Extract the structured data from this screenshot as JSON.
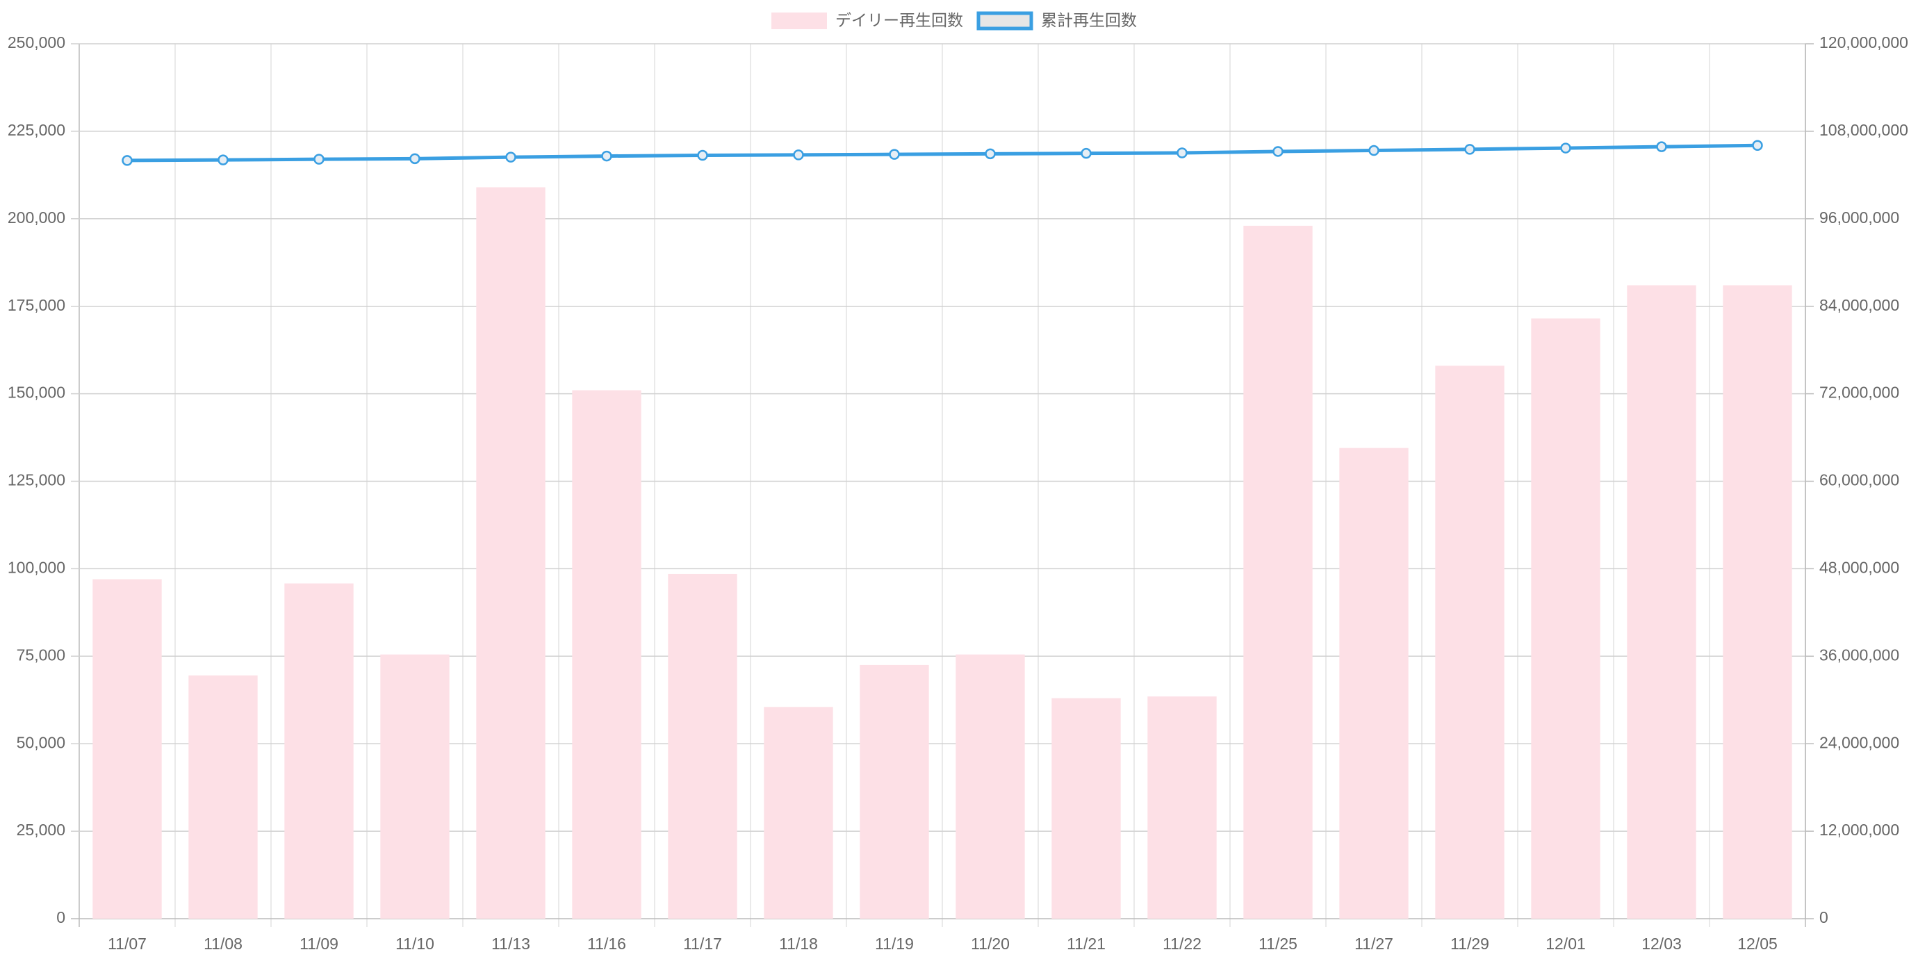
{
  "chart_data": {
    "type": "bar",
    "categories": [
      "11/07",
      "11/08",
      "11/09",
      "11/10",
      "11/13",
      "11/16",
      "11/17",
      "11/18",
      "11/19",
      "11/20",
      "11/21",
      "11/22",
      "11/25",
      "11/27",
      "11/29",
      "12/01",
      "12/03",
      "12/05"
    ],
    "series": [
      {
        "name": "デイリー再生回数",
        "type": "bar",
        "color": "#fde0e6",
        "values": [
          97000,
          69500,
          95800,
          75500,
          209000,
          151000,
          98500,
          60500,
          72500,
          75500,
          63000,
          63500,
          198000,
          134500,
          158000,
          171500,
          181000,
          181000
        ]
      },
      {
        "name": "累計再生回数",
        "type": "line",
        "axis": "y2",
        "color": "#3a9fe2",
        "values": [
          104000000,
          104069500,
          104165300,
          104240800,
          104449800,
          104600800,
          104699300,
          104759800,
          104832300,
          104907800,
          104970800,
          105034300,
          105232300,
          105366800,
          105524800,
          105696300,
          105877300,
          106058300
        ]
      }
    ],
    "ylim": [
      0,
      250000
    ],
    "yticks": [
      0,
      {
        "value": 25000,
        "label": "25,000"
      },
      {
        "value": 50000,
        "label": "50,000"
      },
      {
        "value": 75000,
        "label": "75,000"
      },
      {
        "value": 100000,
        "label": "100,000"
      },
      {
        "value": 125000,
        "label": "125,000"
      },
      {
        "value": 150000,
        "label": "150,000"
      },
      {
        "value": 175000,
        "label": "175,000"
      },
      {
        "value": 200000,
        "label": "200,000"
      },
      {
        "value": 225000,
        "label": "225,000"
      },
      {
        "value": 250000,
        "label": "250,000"
      }
    ],
    "y2lim": [
      0,
      120000000
    ],
    "y2ticks": [
      0,
      {
        "value": 12000000,
        "label": "12,000,000"
      },
      {
        "value": 24000000,
        "label": "24,000,000"
      },
      {
        "value": 36000000,
        "label": "36,000,000"
      },
      {
        "value": 48000000,
        "label": "48,000,000"
      },
      {
        "value": 60000000,
        "label": "60,000,000"
      },
      {
        "value": 72000000,
        "label": "72,000,000"
      },
      {
        "value": 84000000,
        "label": "84,000,000"
      },
      {
        "value": 96000000,
        "label": "96,000,000"
      },
      {
        "value": 108000000,
        "label": "108,000,000"
      },
      {
        "value": 120000000,
        "label": "120,000,000"
      }
    ],
    "grid": true,
    "legend": "top"
  }
}
